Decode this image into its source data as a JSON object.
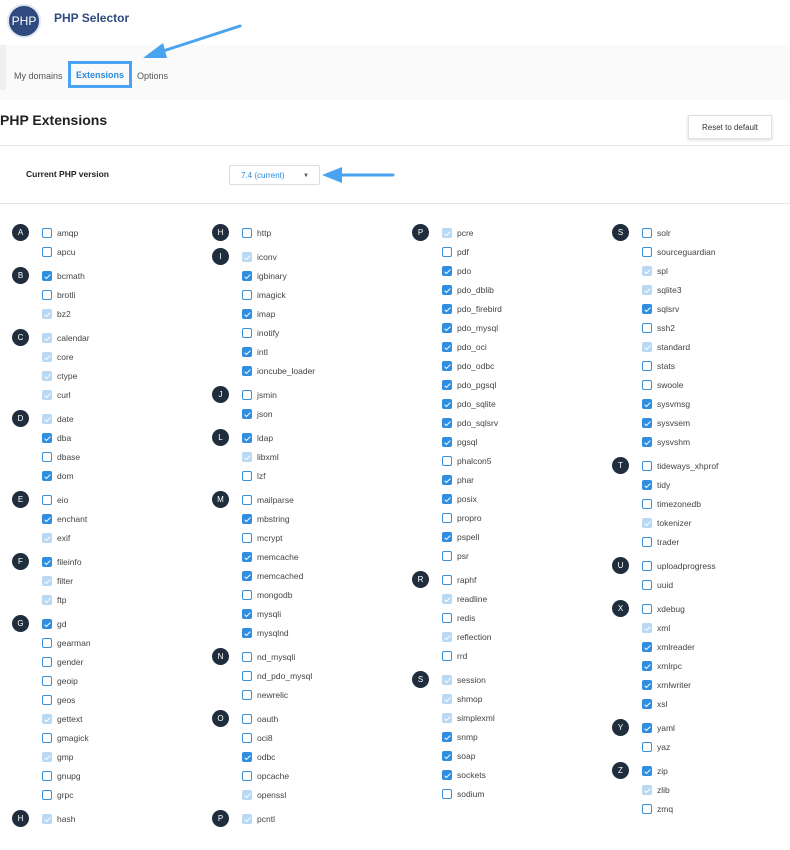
{
  "header": {
    "logo_text": "PHP",
    "title": "PHP Selector"
  },
  "tabs": [
    {
      "label": "My domains"
    },
    {
      "label": "Extensions",
      "active": true
    },
    {
      "label": "Options"
    }
  ],
  "page_title": "PHP Extensions",
  "reset_label": "Reset to default",
  "version": {
    "label": "Current PHP version",
    "selected": "7.4 (current)"
  },
  "colors": {
    "checked": "#2f8ee0",
    "checked_disabled": "#b9d8f3",
    "annotation_arrow": "#4aa3f0",
    "letter_badge": "#1f2d3d"
  },
  "states_legend": {
    "c": "checked",
    "d": "checked-disabled",
    "u": "unchecked"
  },
  "columns": [
    [
      {
        "letter": "A",
        "items": [
          [
            "amqp",
            "u"
          ],
          [
            "apcu",
            "u"
          ]
        ]
      },
      {
        "letter": "B",
        "items": [
          [
            "bcmath",
            "c"
          ],
          [
            "brotli",
            "u"
          ],
          [
            "bz2",
            "d"
          ]
        ]
      },
      {
        "letter": "C",
        "items": [
          [
            "calendar",
            "d"
          ],
          [
            "core",
            "d"
          ],
          [
            "ctype",
            "d"
          ],
          [
            "curl",
            "d"
          ]
        ]
      },
      {
        "letter": "D",
        "items": [
          [
            "date",
            "d"
          ],
          [
            "dba",
            "c"
          ],
          [
            "dbase",
            "u"
          ],
          [
            "dom",
            "c"
          ]
        ]
      },
      {
        "letter": "E",
        "items": [
          [
            "eio",
            "u"
          ],
          [
            "enchant",
            "c"
          ],
          [
            "exif",
            "d"
          ]
        ]
      },
      {
        "letter": "F",
        "items": [
          [
            "fileinfo",
            "c"
          ],
          [
            "filter",
            "d"
          ],
          [
            "ftp",
            "d"
          ]
        ]
      },
      {
        "letter": "G",
        "items": [
          [
            "gd",
            "c"
          ],
          [
            "gearman",
            "u"
          ],
          [
            "gender",
            "u"
          ],
          [
            "geoip",
            "u"
          ],
          [
            "geos",
            "u"
          ],
          [
            "gettext",
            "d"
          ],
          [
            "gmagick",
            "u"
          ],
          [
            "gmp",
            "d"
          ],
          [
            "gnupg",
            "u"
          ],
          [
            "grpc",
            "u"
          ]
        ]
      },
      {
        "letter": "H",
        "items": [
          [
            "hash",
            "d"
          ]
        ]
      }
    ],
    [
      {
        "letter": "H",
        "items": [
          [
            "http",
            "u"
          ]
        ]
      },
      {
        "letter": "I",
        "items": [
          [
            "iconv",
            "d"
          ],
          [
            "igbinary",
            "c"
          ],
          [
            "imagick",
            "u"
          ],
          [
            "imap",
            "c"
          ],
          [
            "inotify",
            "u"
          ],
          [
            "intl",
            "c"
          ],
          [
            "ioncube_loader",
            "c"
          ]
        ]
      },
      {
        "letter": "J",
        "items": [
          [
            "jsmin",
            "u"
          ],
          [
            "json",
            "c"
          ]
        ]
      },
      {
        "letter": "L",
        "items": [
          [
            "ldap",
            "c"
          ],
          [
            "libxml",
            "d"
          ],
          [
            "lzf",
            "u"
          ]
        ]
      },
      {
        "letter": "M",
        "items": [
          [
            "mailparse",
            "u"
          ],
          [
            "mbstring",
            "c"
          ],
          [
            "mcrypt",
            "u"
          ],
          [
            "memcache",
            "c"
          ],
          [
            "memcached",
            "c"
          ],
          [
            "mongodb",
            "u"
          ],
          [
            "mysqli",
            "c"
          ],
          [
            "mysqlnd",
            "c"
          ]
        ]
      },
      {
        "letter": "N",
        "items": [
          [
            "nd_mysqli",
            "u"
          ],
          [
            "nd_pdo_mysql",
            "u"
          ],
          [
            "newrelic",
            "u"
          ]
        ]
      },
      {
        "letter": "O",
        "items": [
          [
            "oauth",
            "u"
          ],
          [
            "oci8",
            "u"
          ],
          [
            "odbc",
            "c"
          ],
          [
            "opcache",
            "u"
          ],
          [
            "openssl",
            "d"
          ]
        ]
      },
      {
        "letter": "P",
        "items": [
          [
            "pcntl",
            "d"
          ]
        ]
      }
    ],
    [
      {
        "letter": "P",
        "items": [
          [
            "pcre",
            "d"
          ],
          [
            "pdf",
            "u"
          ],
          [
            "pdo",
            "c"
          ],
          [
            "pdo_dblib",
            "c"
          ],
          [
            "pdo_firebird",
            "c"
          ],
          [
            "pdo_mysql",
            "c"
          ],
          [
            "pdo_oci",
            "c"
          ],
          [
            "pdo_odbc",
            "c"
          ],
          [
            "pdo_pgsql",
            "c"
          ],
          [
            "pdo_sqlite",
            "c"
          ],
          [
            "pdo_sqlsrv",
            "c"
          ],
          [
            "pgsql",
            "c"
          ],
          [
            "phalcon5",
            "u"
          ],
          [
            "phar",
            "c"
          ],
          [
            "posix",
            "c"
          ],
          [
            "propro",
            "u"
          ],
          [
            "pspell",
            "c"
          ],
          [
            "psr",
            "u"
          ]
        ]
      },
      {
        "letter": "R",
        "items": [
          [
            "raphf",
            "u"
          ],
          [
            "readline",
            "d"
          ],
          [
            "redis",
            "u"
          ],
          [
            "reflection",
            "d"
          ],
          [
            "rrd",
            "u"
          ]
        ]
      },
      {
        "letter": "S",
        "items": [
          [
            "session",
            "d"
          ],
          [
            "shmop",
            "d"
          ],
          [
            "simplexml",
            "d"
          ],
          [
            "snmp",
            "c"
          ],
          [
            "soap",
            "c"
          ],
          [
            "sockets",
            "c"
          ],
          [
            "sodium",
            "u"
          ]
        ]
      }
    ],
    [
      {
        "letter": "S",
        "items": [
          [
            "solr",
            "u"
          ],
          [
            "sourceguardian",
            "u"
          ],
          [
            "spl",
            "d"
          ],
          [
            "sqlite3",
            "d"
          ],
          [
            "sqlsrv",
            "c"
          ],
          [
            "ssh2",
            "u"
          ],
          [
            "standard",
            "d"
          ],
          [
            "stats",
            "u"
          ],
          [
            "swoole",
            "u"
          ],
          [
            "sysvmsg",
            "c"
          ],
          [
            "sysvsem",
            "c"
          ],
          [
            "sysvshm",
            "c"
          ]
        ]
      },
      {
        "letter": "T",
        "items": [
          [
            "tideways_xhprof",
            "u"
          ],
          [
            "tidy",
            "c"
          ],
          [
            "timezonedb",
            "u"
          ],
          [
            "tokenizer",
            "d"
          ],
          [
            "trader",
            "u"
          ]
        ]
      },
      {
        "letter": "U",
        "items": [
          [
            "uploadprogress",
            "u"
          ],
          [
            "uuid",
            "u"
          ]
        ]
      },
      {
        "letter": "X",
        "items": [
          [
            "xdebug",
            "u"
          ],
          [
            "xml",
            "d"
          ],
          [
            "xmlreader",
            "c"
          ],
          [
            "xmlrpc",
            "c"
          ],
          [
            "xmlwriter",
            "c"
          ],
          [
            "xsl",
            "c"
          ]
        ]
      },
      {
        "letter": "Y",
        "items": [
          [
            "yaml",
            "c"
          ],
          [
            "yaz",
            "u"
          ]
        ]
      },
      {
        "letter": "Z",
        "items": [
          [
            "zip",
            "c"
          ],
          [
            "zlib",
            "d"
          ],
          [
            "zmq",
            "u"
          ]
        ]
      }
    ]
  ]
}
